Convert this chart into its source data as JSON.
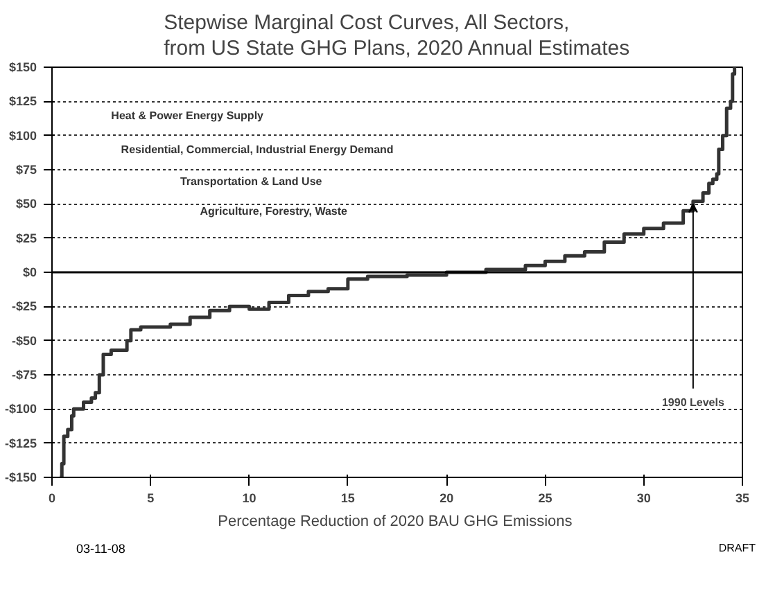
{
  "chart_data": {
    "type": "step",
    "title": "Stepwise Marginal Cost Curves, All Sectors, from US State GHG Plans, 2020 Annual Estimates",
    "xlabel": "Percentage Reduction of  2020 BAU GHG Emissions",
    "x": [
      0.4,
      0.5,
      0.6,
      0.8,
      1.0,
      1.1,
      1.5,
      1.6,
      2.0,
      2.2,
      2.4,
      2.6,
      3.0,
      3.7,
      3.8,
      4.0,
      4.5,
      5,
      6,
      7,
      8,
      9,
      10,
      11,
      12,
      13,
      14,
      15,
      16,
      18,
      20,
      22,
      24,
      25,
      26,
      27,
      28,
      29,
      30,
      31,
      32,
      32.5,
      33,
      33.3,
      33.5,
      33.7,
      33.8,
      34.0,
      34.2,
      34.4,
      34.5,
      34.6
    ],
    "series": [
      {
        "color": "#333333",
        "values": [
          -150,
          -140,
          -120,
          -115,
          -105,
          -100,
          -100,
          -95,
          -92,
          -88,
          -75,
          -60,
          -57,
          -57,
          -50,
          -42,
          -40,
          -40,
          -38,
          -33,
          -28,
          -25,
          -27,
          -22,
          -17,
          -14,
          -12,
          -5,
          -3,
          -2,
          0,
          2,
          5,
          8,
          12,
          15,
          22,
          28,
          32,
          36,
          45,
          52,
          58,
          65,
          68,
          72,
          90,
          100,
          120,
          125,
          145,
          150
        ]
      }
    ],
    "xlim": [
      0,
      35
    ],
    "xticks": [
      0,
      5,
      10,
      15,
      20,
      25,
      30,
      35
    ],
    "ylim": [
      -150,
      150
    ],
    "yticks": [
      {
        "value": -150,
        "label": "-$150"
      },
      {
        "value": -125,
        "label": "-$125"
      },
      {
        "value": -100,
        "label": "-$100"
      },
      {
        "value": -75,
        "label": "-$75"
      },
      {
        "value": -50,
        "label": "-$50"
      },
      {
        "value": -25,
        "label": "-$25"
      },
      {
        "value": 0,
        "label": "$0"
      },
      {
        "value": 25,
        "label": "$25"
      },
      {
        "value": 50,
        "label": "$50"
      },
      {
        "value": 75,
        "label": "$75"
      },
      {
        "value": 100,
        "label": "$100"
      },
      {
        "value": 125,
        "label": "$125"
      },
      {
        "value": 150,
        "label": "$150"
      }
    ],
    "ref_lines": [
      {
        "axis": "y",
        "value": 0,
        "color": "#000000",
        "line_style": "solid"
      }
    ],
    "annotations": [
      "Heat & Power Energy Supply",
      "Residential, Commercial, Industrial Energy Demand",
      "Transportation & Land Use",
      "Agriculture, Forestry, Waste",
      {
        "text": "1990 Levels",
        "x": 32.5,
        "y": 50
      },
      "03-11-08",
      "DRAFT"
    ],
    "grid": "y",
    "marker": "none",
    "line_style": "solid"
  }
}
